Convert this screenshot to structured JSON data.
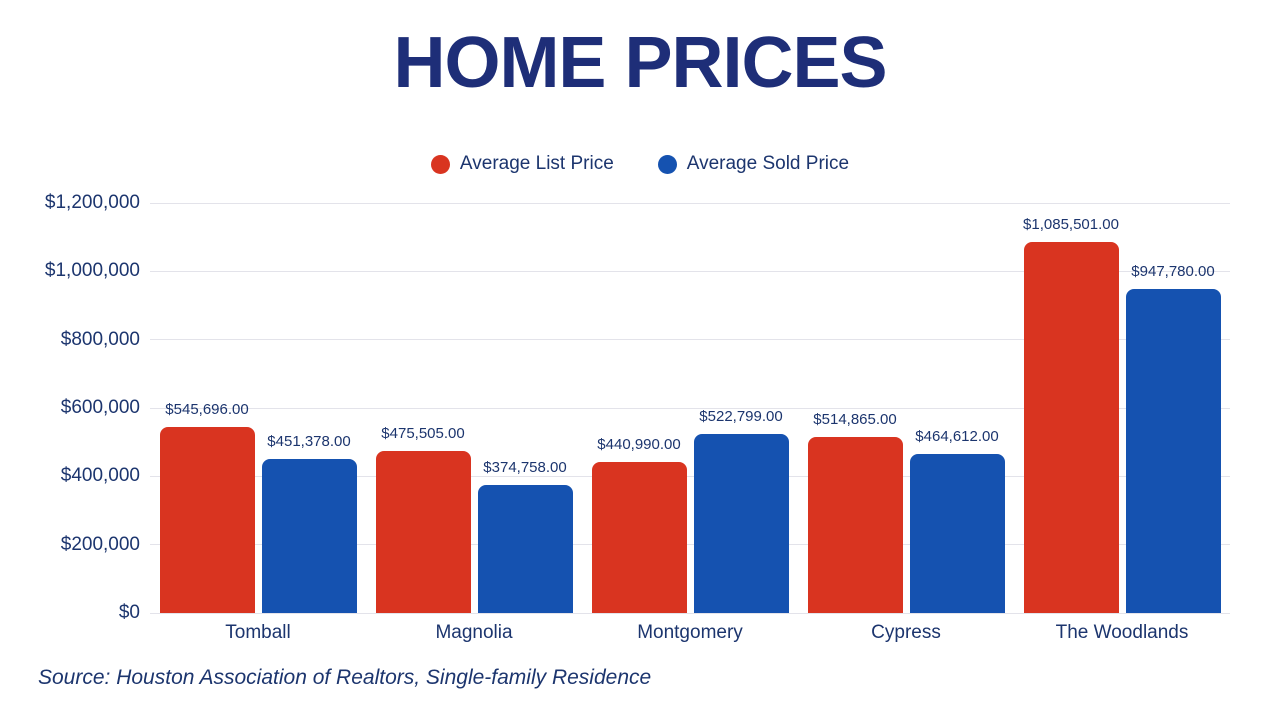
{
  "title": "HOME PRICES",
  "source_note": "Source: Houston Association of Realtors, Single-family Residence",
  "legend": {
    "position": "top",
    "items": [
      {
        "label": "Average List Price",
        "color": "#d93420"
      },
      {
        "label": "Average Sold Price",
        "color": "#1552b0"
      }
    ]
  },
  "colors": {
    "title_navy": "#1e2e78",
    "text_navy": "#1c356e",
    "gridline": "#e3e3ea",
    "background": "#ffffff",
    "list_price_red": "#d93420",
    "sold_price_blue": "#1552b0"
  },
  "chart_data": {
    "type": "bar",
    "title": "HOME PRICES",
    "categories": [
      "Tomball",
      "Magnolia",
      "Montgomery",
      "Cypress",
      "The Woodlands"
    ],
    "series": [
      {
        "name": "Average List Price",
        "key": "list",
        "color": "#d93420",
        "values": [
          545696,
          475505,
          440990,
          514865,
          1085501
        ],
        "value_labels": [
          "$545,696.00",
          "$475,505.00",
          "$440,990.00",
          "$514,865.00",
          "$1,085,501.00"
        ]
      },
      {
        "name": "Average Sold Price",
        "key": "sold",
        "color": "#1552b0",
        "values": [
          451378,
          374758,
          522799,
          464612,
          947780
        ],
        "value_labels": [
          "$451,378.00",
          "$374,758.00",
          "$522,799.00",
          "$464,612.00",
          "$947,780.00"
        ]
      }
    ],
    "y_axis": {
      "min": 0,
      "max": 1200000,
      "tick_interval": 200000,
      "tick_labels": [
        "$0",
        "$200,000",
        "$400,000",
        "$600,000",
        "$800,000",
        "$1,000,000",
        "$1,200,000"
      ]
    },
    "grid": true,
    "legend_position": "top",
    "xlabel": "",
    "ylabel": ""
  }
}
